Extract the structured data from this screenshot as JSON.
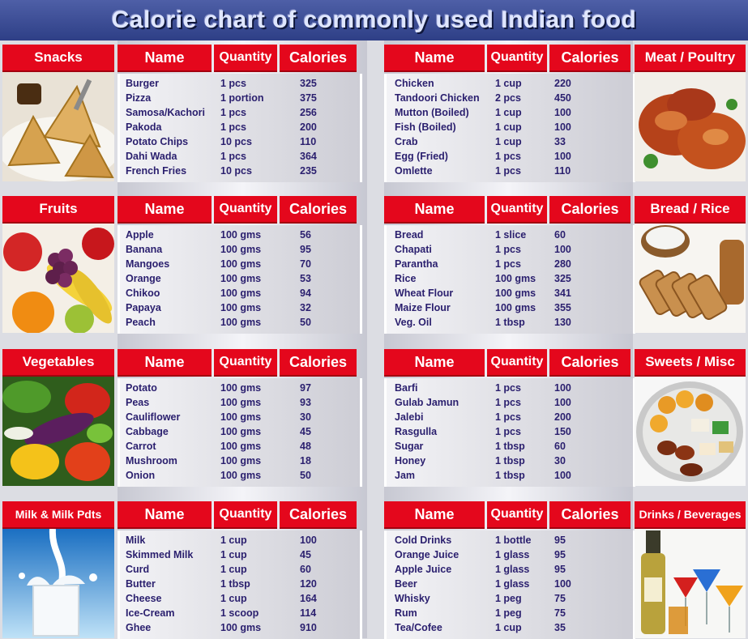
{
  "title": "Calorie chart of commonly used Indian food",
  "headers": {
    "name": "Name",
    "quantity": "Quantity",
    "calories": "Calories"
  },
  "sections": [
    {
      "category": "Snacks",
      "side": "left",
      "image_icon": "samosa-icon",
      "items": [
        {
          "name": "Burger",
          "quantity": "1 pcs",
          "calories": "325"
        },
        {
          "name": "Pizza",
          "quantity": "1 portion",
          "calories": "375"
        },
        {
          "name": "Samosa/Kachori",
          "quantity": "1 pcs",
          "calories": "256"
        },
        {
          "name": "Pakoda",
          "quantity": "1 pcs",
          "calories": "200"
        },
        {
          "name": "Potato Chips",
          "quantity": "10 pcs",
          "calories": "110"
        },
        {
          "name": "Dahi Wada",
          "quantity": "1 pcs",
          "calories": "364"
        },
        {
          "name": "French Fries",
          "quantity": "10 pcs",
          "calories": "235"
        }
      ]
    },
    {
      "category": "Meat / Poultry",
      "side": "right",
      "image_icon": "roast-chicken-icon",
      "items": [
        {
          "name": "Chicken",
          "quantity": "1 cup",
          "calories": "220"
        },
        {
          "name": "Tandoori Chicken",
          "quantity": "2 pcs",
          "calories": "450"
        },
        {
          "name": "Mutton (Boiled)",
          "quantity": "1 cup",
          "calories": "100"
        },
        {
          "name": "Fish (Boiled)",
          "quantity": "1 cup",
          "calories": "100"
        },
        {
          "name": "Crab",
          "quantity": "1 cup",
          "calories": "33"
        },
        {
          "name": "Egg (Fried)",
          "quantity": "1 pcs",
          "calories": "100"
        },
        {
          "name": "Omlette",
          "quantity": "1 pcs",
          "calories": "110"
        }
      ]
    },
    {
      "category": "Fruits",
      "side": "left",
      "image_icon": "fruits-icon",
      "items": [
        {
          "name": "Apple",
          "quantity": "100 gms",
          "calories": "56"
        },
        {
          "name": "Banana",
          "quantity": "100 gms",
          "calories": "95"
        },
        {
          "name": "Mangoes",
          "quantity": "100 gms",
          "calories": "70"
        },
        {
          "name": "Orange",
          "quantity": "100 gms",
          "calories": "53"
        },
        {
          "name": "Chikoo",
          "quantity": "100 gms",
          "calories": "94"
        },
        {
          "name": "Papaya",
          "quantity": "100 gms",
          "calories": "32"
        },
        {
          "name": "Peach",
          "quantity": "100 gms",
          "calories": "50"
        }
      ]
    },
    {
      "category": "Bread / Rice",
      "side": "right",
      "image_icon": "bread-rice-icon",
      "items": [
        {
          "name": "Bread",
          "quantity": "1 slice",
          "calories": "60"
        },
        {
          "name": "Chapati",
          "quantity": "1 pcs",
          "calories": "100"
        },
        {
          "name": "Parantha",
          "quantity": "1 pcs",
          "calories": "280"
        },
        {
          "name": "Rice",
          "quantity": "100 gms",
          "calories": "325"
        },
        {
          "name": "Wheat Flour",
          "quantity": "100 gms",
          "calories": "341"
        },
        {
          "name": "Maize Flour",
          "quantity": "100 gms",
          "calories": "355"
        },
        {
          "name": "Veg. Oil",
          "quantity": "1 tbsp",
          "calories": "130"
        }
      ]
    },
    {
      "category": "Vegetables",
      "side": "left",
      "image_icon": "vegetables-icon",
      "items": [
        {
          "name": "Potato",
          "quantity": "100 gms",
          "calories": "97"
        },
        {
          "name": "Peas",
          "quantity": "100 gms",
          "calories": "93"
        },
        {
          "name": "Cauliflower",
          "quantity": "100 gms",
          "calories": "30"
        },
        {
          "name": "Cabbage",
          "quantity": "100 gms",
          "calories": "45"
        },
        {
          "name": "Carrot",
          "quantity": "100 gms",
          "calories": "48"
        },
        {
          "name": "Mushroom",
          "quantity": "100 gms",
          "calories": "18"
        },
        {
          "name": "Onion",
          "quantity": "100 gms",
          "calories": "50"
        }
      ]
    },
    {
      "category": "Sweets / Misc",
      "side": "right",
      "image_icon": "sweets-plate-icon",
      "items": [
        {
          "name": "Barfi",
          "quantity": "1 pcs",
          "calories": "100"
        },
        {
          "name": "Gulab Jamun",
          "quantity": "1 pcs",
          "calories": "100"
        },
        {
          "name": "Jalebi",
          "quantity": "1 pcs",
          "calories": "200"
        },
        {
          "name": "Rasgulla",
          "quantity": "1 pcs",
          "calories": "150"
        },
        {
          "name": "Sugar",
          "quantity": "1 tbsp",
          "calories": "60"
        },
        {
          "name": "Honey",
          "quantity": "1 tbsp",
          "calories": "30"
        },
        {
          "name": "Jam",
          "quantity": "1 tbsp",
          "calories": "100"
        }
      ]
    },
    {
      "category": "Milk & Milk Pdts",
      "side": "left",
      "image_icon": "milk-glass-icon",
      "items": [
        {
          "name": "Milk",
          "quantity": "1 cup",
          "calories": "100"
        },
        {
          "name": "Skimmed Milk",
          "quantity": "1 cup",
          "calories": "45"
        },
        {
          "name": "Curd",
          "quantity": "1 cup",
          "calories": "60"
        },
        {
          "name": "Butter",
          "quantity": "1 tbsp",
          "calories": "120"
        },
        {
          "name": "Cheese",
          "quantity": "1 cup",
          "calories": "164"
        },
        {
          "name": "Ice-Cream",
          "quantity": "1 scoop",
          "calories": "114"
        },
        {
          "name": "Ghee",
          "quantity": "100 gms",
          "calories": "910"
        }
      ]
    },
    {
      "category": "Drinks / Beverages",
      "side": "right",
      "image_icon": "drinks-glasses-icon",
      "items": [
        {
          "name": "Cold Drinks",
          "quantity": "1 bottle",
          "calories": "95"
        },
        {
          "name": "Orange Juice",
          "quantity": "1 glass",
          "calories": "95"
        },
        {
          "name": "Apple Juice",
          "quantity": "1 glass",
          "calories": "95"
        },
        {
          "name": "Beer",
          "quantity": "1 glass",
          "calories": "100"
        },
        {
          "name": "Whisky",
          "quantity": "1 peg",
          "calories": "75"
        },
        {
          "name": "Rum",
          "quantity": "1 peg",
          "calories": "75"
        },
        {
          "name": "Tea/Cofee",
          "quantity": "1 cup",
          "calories": "35"
        }
      ]
    }
  ]
}
